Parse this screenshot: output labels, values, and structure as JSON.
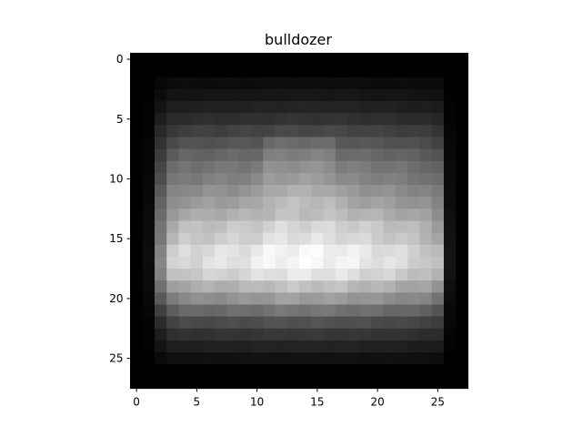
{
  "chart_data": {
    "type": "heatmap",
    "title": "bulldozer",
    "colormap": "gray",
    "rows": 28,
    "cols": 28,
    "xlim": [
      -0.5,
      27.5
    ],
    "ylim": [
      27.5,
      -0.5
    ],
    "x_ticks": [
      0,
      5,
      10,
      15,
      20,
      25
    ],
    "y_ticks": [
      0,
      5,
      10,
      15,
      20,
      25
    ],
    "grid": false,
    "value_range": [
      0,
      1
    ],
    "estimation_note": "pixel intensities estimated from image",
    "row_profile": [
      0.0,
      0.0,
      0.05,
      0.09,
      0.14,
      0.2,
      0.28,
      0.36,
      0.42,
      0.47,
      0.5,
      0.56,
      0.62,
      0.7,
      0.82,
      0.88,
      0.96,
      0.97,
      0.9,
      0.76,
      0.62,
      0.46,
      0.32,
      0.22,
      0.14,
      0.07,
      0.0,
      0.0
    ],
    "col_profile": [
      0.0,
      0.05,
      0.55,
      0.82,
      0.88,
      0.88,
      0.9,
      0.91,
      0.92,
      0.93,
      0.95,
      0.98,
      1.0,
      1.0,
      1.0,
      1.0,
      0.99,
      0.98,
      0.96,
      0.94,
      0.92,
      0.9,
      0.88,
      0.85,
      0.82,
      0.75,
      0.08,
      0.0
    ],
    "center_bump": [
      0,
      0,
      0,
      0,
      0,
      0,
      0,
      0,
      0.04,
      0.07,
      0.1,
      0.12,
      0.12,
      0.1,
      0.04,
      0,
      0,
      0,
      0,
      0,
      0,
      0,
      0,
      0,
      0,
      0,
      0,
      0
    ]
  }
}
